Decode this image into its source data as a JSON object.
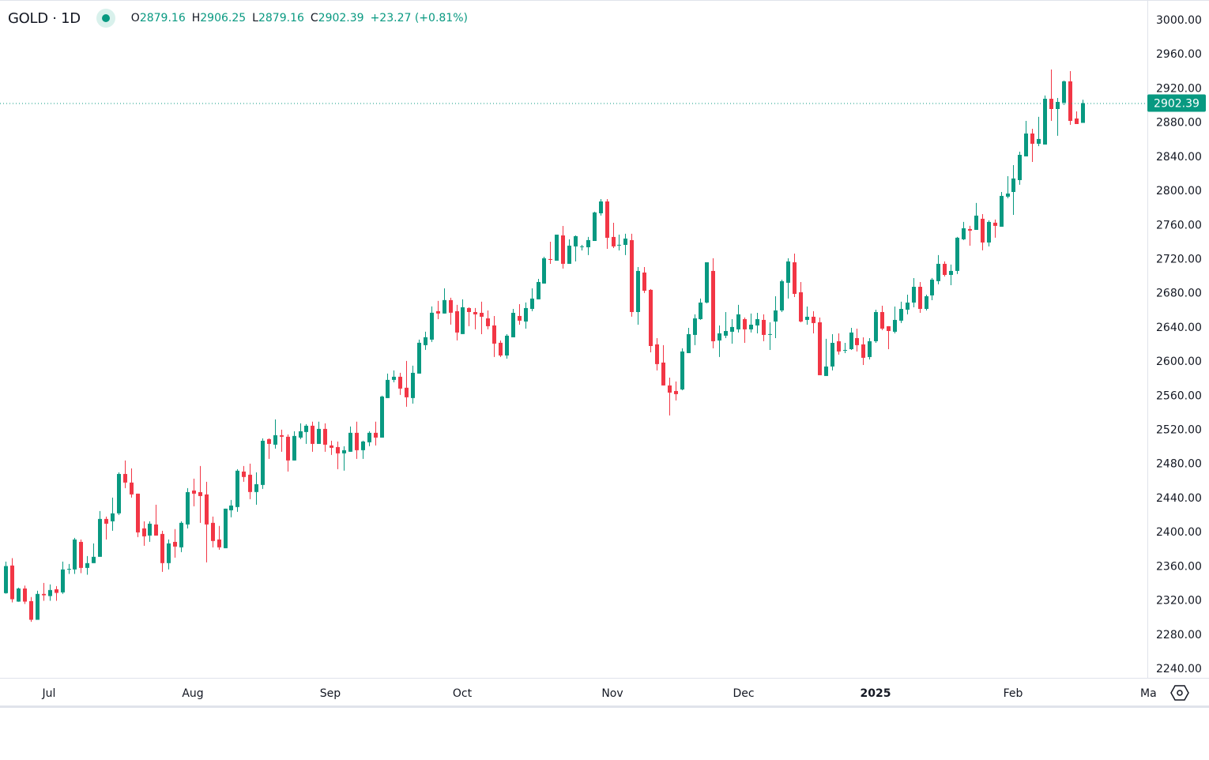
{
  "header": {
    "symbol": "GOLD · 1D",
    "open_label": "O",
    "open": "2879.16",
    "high_label": "H",
    "high": "2906.25",
    "low_label": "L",
    "low": "2879.16",
    "close_label": "C",
    "close": "2902.39",
    "change": "+23.27 (+0.81%)",
    "market_status": "open"
  },
  "colors": {
    "up": "#089981",
    "down": "#f23645",
    "text": "#131722",
    "grid_border": "#e0e3eb"
  },
  "icons": {
    "status": "status-dot-icon",
    "settings": "settings-hexagon-icon"
  },
  "chart_data": {
    "type": "candlestick",
    "title": "GOLD · 1D",
    "ylim": [
      2240,
      3000
    ],
    "yticks": [
      "3000.00",
      "2960.00",
      "2920.00",
      "2880.00",
      "2840.00",
      "2800.00",
      "2760.00",
      "2720.00",
      "2680.00",
      "2640.00",
      "2600.00",
      "2560.00",
      "2520.00",
      "2480.00",
      "2440.00",
      "2400.00",
      "2360.00",
      "2320.00",
      "2280.00",
      "2240.00"
    ],
    "xticks": [
      "Jul",
      "Aug",
      "Sep",
      "Oct",
      "Nov",
      "Dec",
      "2025",
      "Feb",
      "Ma"
    ],
    "last_price": "2902.39",
    "grid": false,
    "ohlc_fields": [
      "open",
      "high",
      "low",
      "close"
    ],
    "candles": [
      [
        2328.1,
        2365.1,
        2327.5,
        2359.9
      ],
      [
        2360.5,
        2369.1,
        2317.3,
        2321.0
      ],
      [
        2318.2,
        2334.5,
        2318.0,
        2333.6
      ],
      [
        2333.6,
        2337.0,
        2315.4,
        2318.2
      ],
      [
        2318.8,
        2323.5,
        2294.5,
        2296.9
      ],
      [
        2296.9,
        2330.9,
        2296.9,
        2327.2
      ],
      [
        2327.2,
        2340.1,
        2319.1,
        2325.6
      ],
      [
        2324.7,
        2338.3,
        2319.1,
        2331.8
      ],
      [
        2332.7,
        2336.4,
        2319.1,
        2328.4
      ],
      [
        2329.0,
        2365.1,
        2327.2,
        2355.9
      ],
      [
        2356.5,
        2362.3,
        2350.6,
        2356.6
      ],
      [
        2355.9,
        2392.9,
        2350.6,
        2391.0
      ],
      [
        2388.2,
        2391.0,
        2351.5,
        2357.7
      ],
      [
        2357.7,
        2371.6,
        2349.7,
        2363.3
      ],
      [
        2363.3,
        2386.4,
        2363.3,
        2370.7
      ],
      [
        2370.7,
        2424.3,
        2370.7,
        2415.1
      ],
      [
        2415.1,
        2417.9,
        2391.0,
        2409.5
      ],
      [
        2412.3,
        2440.1,
        2401.2,
        2421.6
      ],
      [
        2421.6,
        2469.7,
        2419.7,
        2467.8
      ],
      [
        2467.8,
        2483.6,
        2451.2,
        2457.7
      ],
      [
        2457.7,
        2474.3,
        2440.1,
        2443.8
      ],
      [
        2444.7,
        2444.7,
        2393.8,
        2399.3
      ],
      [
        2404.0,
        2412.3,
        2383.6,
        2394.7
      ],
      [
        2395.6,
        2412.3,
        2388.2,
        2409.5
      ],
      [
        2408.6,
        2431.7,
        2395.6,
        2395.6
      ],
      [
        2397.5,
        2401.2,
        2353.1,
        2363.3
      ],
      [
        2363.3,
        2391.0,
        2355.9,
        2386.4
      ],
      [
        2388.2,
        2403.1,
        2369.7,
        2382.7
      ],
      [
        2381.8,
        2412.3,
        2376.2,
        2410.5
      ],
      [
        2408.6,
        2451.2,
        2404.0,
        2446.5
      ],
      [
        2448.4,
        2462.3,
        2429.9,
        2444.7
      ],
      [
        2446.5,
        2477.1,
        2410.5,
        2441.9
      ],
      [
        2443.8,
        2458.6,
        2364.2,
        2408.6
      ],
      [
        2410.5,
        2417.9,
        2381.8,
        2389.2
      ],
      [
        2391.0,
        2406.8,
        2379.0,
        2381.8
      ],
      [
        2380.8,
        2427.1,
        2380.8,
        2427.1
      ],
      [
        2425.2,
        2437.3,
        2417.0,
        2430.8
      ],
      [
        2429.0,
        2473.4,
        2423.4,
        2471.6
      ],
      [
        2470.6,
        2477.1,
        2458.6,
        2464.2
      ],
      [
        2466.9,
        2479.9,
        2438.2,
        2446.6
      ],
      [
        2446.6,
        2469.7,
        2431.7,
        2455.8
      ],
      [
        2454.9,
        2509.5,
        2450.3,
        2506.7
      ],
      [
        2508.6,
        2509.5,
        2485.4,
        2503.0
      ],
      [
        2502.1,
        2531.7,
        2497.5,
        2513.2
      ],
      [
        2513.2,
        2519.7,
        2493.8,
        2511.4
      ],
      [
        2511.4,
        2514.1,
        2470.6,
        2483.6
      ],
      [
        2483.6,
        2517.8,
        2483.6,
        2512.3
      ],
      [
        2510.4,
        2527.1,
        2508.6,
        2517.8
      ],
      [
        2516.9,
        2526.2,
        2503.0,
        2524.3
      ],
      [
        2524.3,
        2529.0,
        2493.8,
        2503.0
      ],
      [
        2503.0,
        2529.0,
        2503.0,
        2520.6
      ],
      [
        2520.6,
        2527.1,
        2493.8,
        2502.1
      ],
      [
        2501.2,
        2506.7,
        2490.1,
        2498.4
      ],
      [
        2499.3,
        2505.8,
        2473.4,
        2491.9
      ],
      [
        2491.9,
        2500.2,
        2471.6,
        2495.6
      ],
      [
        2493.8,
        2523.4,
        2493.8,
        2516.0
      ],
      [
        2516.0,
        2529.0,
        2485.4,
        2495.6
      ],
      [
        2495.6,
        2506.7,
        2485.4,
        2505.8
      ],
      [
        2504.9,
        2517.8,
        2500.3,
        2516.0
      ],
      [
        2516.0,
        2529.0,
        2501.2,
        2510.4
      ],
      [
        2510.4,
        2559.5,
        2510.4,
        2558.5
      ],
      [
        2556.7,
        2585.4,
        2556.7,
        2578.0
      ],
      [
        2578.0,
        2589.1,
        2575.2,
        2581.7
      ],
      [
        2581.7,
        2586.3,
        2560.4,
        2567.8
      ],
      [
        2568.8,
        2600.2,
        2546.5,
        2557.6
      ],
      [
        2556.7,
        2594.7,
        2550.2,
        2586.3
      ],
      [
        2585.4,
        2625.2,
        2585.4,
        2621.5
      ],
      [
        2618.7,
        2634.5,
        2613.2,
        2628.0
      ],
      [
        2625.2,
        2664.1,
        2622.4,
        2656.7
      ],
      [
        2658.5,
        2670.6,
        2649.2,
        2655.8
      ],
      [
        2655.8,
        2685.3,
        2655.8,
        2671.5
      ],
      [
        2671.5,
        2674.3,
        2642.8,
        2656.7
      ],
      [
        2658.5,
        2665.9,
        2624.3,
        2633.5
      ],
      [
        2631.7,
        2672.4,
        2631.7,
        2663.1
      ],
      [
        2662.2,
        2663.1,
        2640.9,
        2657.5
      ],
      [
        2657.5,
        2662.2,
        2637.2,
        2654.8
      ],
      [
        2656.6,
        2669.6,
        2631.6,
        2652.0
      ],
      [
        2650.1,
        2659.4,
        2637.2,
        2640.9
      ],
      [
        2641.8,
        2652.9,
        2604.8,
        2620.5
      ],
      [
        2621.5,
        2624.2,
        2604.8,
        2606.6
      ],
      [
        2606.6,
        2631.6,
        2602.9,
        2629.8
      ],
      [
        2627.9,
        2661.2,
        2627.9,
        2656.6
      ],
      [
        2652.9,
        2666.8,
        2642.7,
        2647.4
      ],
      [
        2646.4,
        2668.7,
        2638.1,
        2662.2
      ],
      [
        2661.2,
        2685.3,
        2658.5,
        2673.3
      ],
      [
        2672.4,
        2696.4,
        2672.4,
        2692.7
      ],
      [
        2690.9,
        2722.3,
        2690.9,
        2720.5
      ],
      [
        2719.6,
        2739.9,
        2714.0,
        2718.6
      ],
      [
        2717.7,
        2748.2,
        2717.7,
        2748.2
      ],
      [
        2747.3,
        2758.4,
        2708.4,
        2714.0
      ],
      [
        2714.0,
        2742.7,
        2714.0,
        2735.3
      ],
      [
        2734.4,
        2747.3,
        2716.8,
        2746.4
      ],
      [
        2734.4,
        2736.2,
        2729.7,
        2734.5
      ],
      [
        2733.4,
        2745.5,
        2724.2,
        2741.8
      ],
      [
        2740.8,
        2775.1,
        2740.8,
        2774.2
      ],
      [
        2773.2,
        2789.9,
        2770.5,
        2787.1
      ],
      [
        2787.1,
        2789.9,
        2731.6,
        2744.5
      ],
      [
        2745.5,
        2762.1,
        2732.5,
        2734.4
      ],
      [
        2736.2,
        2748.2,
        2729.7,
        2736.3
      ],
      [
        2736.2,
        2749.2,
        2724.2,
        2743.6
      ],
      [
        2741.8,
        2749.2,
        2652.0,
        2657.5
      ],
      [
        2657.5,
        2710.3,
        2642.7,
        2705.7
      ],
      [
        2703.8,
        2710.3,
        2679.8,
        2682.5
      ],
      [
        2683.5,
        2684.4,
        2610.3,
        2617.7
      ],
      [
        2619.6,
        2627.0,
        2589.1,
        2596.5
      ],
      [
        2598.3,
        2618.7,
        2571.5,
        2571.5
      ],
      [
        2571.5,
        2580.7,
        2536.3,
        2563.1
      ],
      [
        2565.0,
        2576.1,
        2553.9,
        2561.3
      ],
      [
        2566.8,
        2615.0,
        2565.9,
        2611.3
      ],
      [
        2609.4,
        2639.0,
        2609.4,
        2631.6
      ],
      [
        2630.7,
        2654.8,
        2618.7,
        2650.1
      ],
      [
        2649.2,
        2673.3,
        2648.3,
        2668.6
      ],
      [
        2668.6,
        2715.8,
        2667.7,
        2715.8
      ],
      [
        2705.7,
        2720.5,
        2615.0,
        2623.3
      ],
      [
        2624.2,
        2641.8,
        2604.8,
        2632.5
      ],
      [
        2629.8,
        2657.5,
        2627.0,
        2635.3
      ],
      [
        2634.4,
        2649.2,
        2620.5,
        2640.0
      ],
      [
        2637.2,
        2665.9,
        2633.5,
        2654.8
      ],
      [
        2649.2,
        2651.1,
        2621.4,
        2637.2
      ],
      [
        2637.2,
        2655.7,
        2633.5,
        2642.7
      ],
      [
        2641.8,
        2656.6,
        2632.5,
        2649.2
      ],
      [
        2648.3,
        2654.8,
        2623.3,
        2630.7
      ],
      [
        2631.6,
        2645.5,
        2613.1,
        2631.7
      ],
      [
        2646.4,
        2676.0,
        2627.0,
        2659.4
      ],
      [
        2659.4,
        2695.5,
        2657.5,
        2693.6
      ],
      [
        2691.8,
        2720.5,
        2673.3,
        2716.8
      ],
      [
        2715.8,
        2726.0,
        2675.1,
        2678.8
      ],
      [
        2680.7,
        2692.7,
        2645.5,
        2646.4
      ],
      [
        2648.3,
        2664.0,
        2642.7,
        2652.0
      ],
      [
        2652.0,
        2658.5,
        2632.5,
        2644.6
      ],
      [
        2645.5,
        2651.1,
        2583.5,
        2583.5
      ],
      [
        2582.6,
        2626.1,
        2582.6,
        2593.7
      ],
      [
        2593.7,
        2631.6,
        2589.1,
        2621.4
      ],
      [
        2623.3,
        2632.5,
        2607.6,
        2611.3
      ],
      [
        2613.0,
        2621.4,
        2609.4,
        2613.1
      ],
      [
        2614.0,
        2639.0,
        2613.1,
        2633.5
      ],
      [
        2627.0,
        2638.1,
        2611.3,
        2618.7
      ],
      [
        2619.6,
        2627.9,
        2595.5,
        2603.9
      ],
      [
        2604.8,
        2627.0,
        2602.0,
        2623.3
      ],
      [
        2623.3,
        2660.3,
        2621.4,
        2657.5
      ],
      [
        2657.5,
        2664.9,
        2636.3,
        2638.1
      ],
      [
        2640.9,
        2640.9,
        2614.0,
        2635.3
      ],
      [
        2634.4,
        2664.0,
        2632.5,
        2648.3
      ],
      [
        2647.4,
        2669.6,
        2644.6,
        2661.2
      ],
      [
        2660.3,
        2677.9,
        2654.8,
        2668.6
      ],
      [
        2668.6,
        2697.3,
        2663.1,
        2687.1
      ],
      [
        2687.1,
        2692.7,
        2656.6,
        2661.2
      ],
      [
        2661.2,
        2677.9,
        2659.4,
        2676.0
      ],
      [
        2677.0,
        2697.4,
        2671.4,
        2695.5
      ],
      [
        2693.7,
        2724.2,
        2690.0,
        2714.0
      ],
      [
        2714.0,
        2716.8,
        2699.2,
        2701.0
      ],
      [
        2701.0,
        2713.1,
        2689.0,
        2705.7
      ],
      [
        2705.7,
        2745.5,
        2702.0,
        2744.6
      ],
      [
        2742.7,
        2763.1,
        2741.8,
        2755.7
      ],
      [
        2754.8,
        2758.5,
        2735.3,
        2752.9
      ],
      [
        2753.8,
        2785.3,
        2753.8,
        2770.5
      ],
      [
        2766.8,
        2772.3,
        2729.8,
        2739.0
      ],
      [
        2739.0,
        2765.0,
        2734.4,
        2763.1
      ],
      [
        2762.2,
        2765.9,
        2744.6,
        2758.5
      ],
      [
        2757.5,
        2798.2,
        2757.5,
        2793.6
      ],
      [
        2792.7,
        2816.7,
        2790.8,
        2796.4
      ],
      [
        2798.2,
        2829.7,
        2771.4,
        2814.0
      ],
      [
        2812.1,
        2845.4,
        2806.6,
        2841.7
      ],
      [
        2839.9,
        2881.5,
        2839.9,
        2866.7
      ],
      [
        2866.7,
        2872.3,
        2833.4,
        2854.7
      ],
      [
        2854.7,
        2886.2,
        2851.9,
        2860.3
      ],
      [
        2853.8,
        2911.2,
        2853.8,
        2907.4
      ],
      [
        2907.4,
        2941.7,
        2881.5,
        2895.4
      ],
      [
        2895.4,
        2908.4,
        2864.0,
        2903.7
      ],
      [
        2902.8,
        2928.7,
        2900.1,
        2927.8
      ],
      [
        2927.8,
        2939.8,
        2876.9,
        2881.5
      ],
      [
        2884.3,
        2892.6,
        2877.8,
        2877.8
      ],
      [
        2879.16,
        2906.25,
        2879.16,
        2902.39
      ]
    ]
  }
}
